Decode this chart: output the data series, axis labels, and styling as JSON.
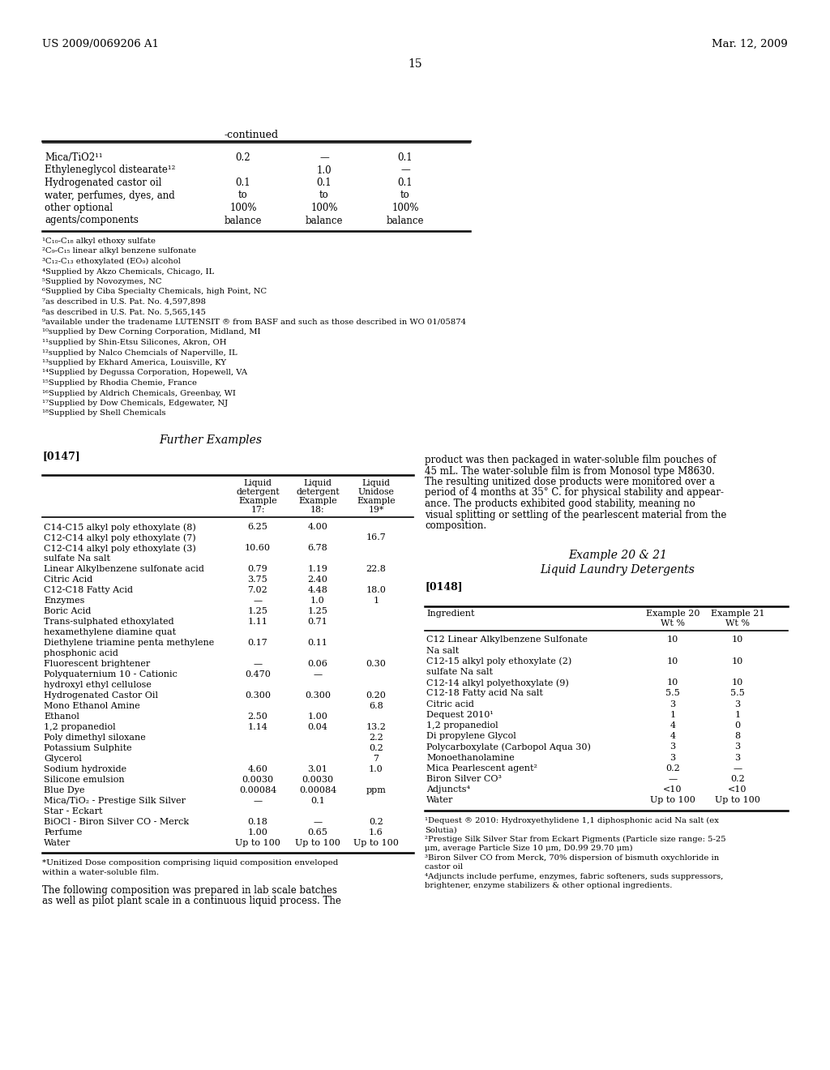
{
  "header_left": "US 2009/0069206 A1",
  "header_right": "Mar. 12, 2009",
  "page_number": "15",
  "bg_color": "#ffffff",
  "continued_label": "-continued",
  "top_table_rows": [
    [
      "Mica/TiO2¹¹",
      "0.2",
      "—",
      "0.1"
    ],
    [
      "Ethyleneglycol distearate¹²",
      "",
      "1.0",
      "—"
    ],
    [
      "Hydrogenated castor oil",
      "0.1",
      "0.1",
      "0.1"
    ],
    [
      "water, perfumes, dyes, and",
      "to",
      "to",
      "to"
    ],
    [
      "other optional",
      "100%",
      "100%",
      "100%"
    ],
    [
      "agents/components",
      "balance",
      "balance",
      "balance"
    ]
  ],
  "footnotes": [
    "¹C₁₀-C₁₈ alkyl ethoxy sulfate",
    "²C₉-C₁₅ linear alkyl benzene sulfonate",
    "³C₁₂-C₁₃ ethoxylated (EO₉) alcohol",
    "⁴Supplied by Akzo Chemicals, Chicago, IL",
    "⁵Supplied by Novozymes, NC",
    "⁶Supplied by Ciba Specialty Chemicals, high Point, NC",
    "⁷as described in U.S. Pat. No. 4,597,898",
    "⁸as described in U.S. Pat. No. 5,565,145",
    "⁹available under the tradename LUTENSIT ® from BASF and such as those described in WO 01/05874",
    "¹⁰supplied by Dew Corning Corporation, Midland, MI",
    "¹¹supplied by Shin-Etsu Silicones, Akron, OH",
    "¹²supplied by Nalco Chemcials of Naperville, IL",
    "¹³supplied by Ekhard America, Louisville, KY",
    "¹⁴Supplied by Degussa Corporation, Hopewell, VA",
    "¹⁵Supplied by Rhodia Chemie, France",
    "¹⁶Supplied by Aldrich Chemicals, Greenbay, WI",
    "¹⁷Supplied by Dow Chemicals, Edgewater, NJ",
    "¹⁸Supplied by Shell Chemicals"
  ],
  "section_title": "Further Examples",
  "paragraph_label": "[0147]",
  "left_table_col_headers": [
    "",
    "Liquid\ndetergent\nExample\n17:",
    "Liquid\ndetergent\nExample\n18:",
    "Liquid\nUnidose\nExample\n19*"
  ],
  "left_table_rows": [
    [
      "C14-C15 alkyl poly ethoxylate (8)",
      "6.25",
      "4.00",
      ""
    ],
    [
      "C12-C14 alkyl poly ethoxylate (7)",
      "",
      "",
      "16.7"
    ],
    [
      "C12-C14 alkyl poly ethoxylate (3)",
      "10.60",
      "6.78",
      ""
    ],
    [
      "sulfate Na salt",
      "",
      "",
      ""
    ],
    [
      "Linear Alkylbenzene sulfonate acid",
      "0.79",
      "1.19",
      "22.8"
    ],
    [
      "Citric Acid",
      "3.75",
      "2.40",
      ""
    ],
    [
      "C12-C18 Fatty Acid",
      "7.02",
      "4.48",
      "18.0"
    ],
    [
      "Enzymes",
      "—",
      "1.0",
      "1"
    ],
    [
      "Boric Acid",
      "1.25",
      "1.25",
      ""
    ],
    [
      "Trans-sulphated ethoxylated",
      "1.11",
      "0.71",
      ""
    ],
    [
      "hexamethylene diamine quat",
      "",
      "",
      ""
    ],
    [
      "Diethylene triamine penta methylene",
      "0.17",
      "0.11",
      ""
    ],
    [
      "phosphonic acid",
      "",
      "",
      ""
    ],
    [
      "Fluorescent brightener",
      "—",
      "0.06",
      "0.30"
    ],
    [
      "Polyquaternium 10 - Cationic",
      "0.470",
      "—",
      ""
    ],
    [
      "hydroxyl ethyl cellulose",
      "",
      "",
      ""
    ],
    [
      "Hydrogenated Castor Oil",
      "0.300",
      "0.300",
      "0.20"
    ],
    [
      "Mono Ethanol Amine",
      "",
      "",
      "6.8"
    ],
    [
      "Ethanol",
      "2.50",
      "1.00",
      ""
    ],
    [
      "1,2 propanediol",
      "1.14",
      "0.04",
      "13.2"
    ],
    [
      "Poly dimethyl siloxane",
      "",
      "",
      "2.2"
    ],
    [
      "Potassium Sulphite",
      "",
      "",
      "0.2"
    ],
    [
      "Glycerol",
      "",
      "",
      "7"
    ],
    [
      "Sodium hydroxide",
      "4.60",
      "3.01",
      "1.0"
    ],
    [
      "Silicone emulsion",
      "0.0030",
      "0.0030",
      ""
    ],
    [
      "Blue Dye",
      "0.00084",
      "0.00084",
      "ppm"
    ],
    [
      "Mica/TiO₂ - Prestige Silk Silver",
      "—",
      "0.1",
      ""
    ],
    [
      "Star - Eckart",
      "",
      "",
      ""
    ],
    [
      "BiOCl - Biron Silver CO - Merck",
      "0.18",
      "—",
      "0.2"
    ],
    [
      "Perfume",
      "1.00",
      "0.65",
      "1.6"
    ],
    [
      "Water",
      "Up to 100",
      "Up to 100",
      "Up to 100"
    ]
  ],
  "asterisk_note": "*Unitized Dose composition comprising liquid composition enveloped\nwithin a water-soluble film.",
  "bottom_text_left": "The following composition was prepared in lab scale batches\nas well as pilot plant scale in a continuous liquid process. The",
  "right_text_lines": [
    "product was then packaged in water-soluble film pouches of",
    "45 mL. The water-soluble film is from Monosol type M8630.",
    "The resulting unitized dose products were monitored over a",
    "period of 4 months at 35° C. for physical stability and appear-",
    "ance. The products exhibited good stability, meaning no",
    "visual splitting or settling of the pearlescent material from the",
    "composition."
  ],
  "example_title": "Example 20 & 21",
  "example_subtitle": "Liquid Laundry Detergents",
  "example_paragraph": "[0148]",
  "right_table_col_headers": [
    "Ingredient",
    "Example 20\nWt %",
    "Example 21\nWt %"
  ],
  "right_table_rows": [
    [
      "C12 Linear Alkylbenzene Sulfonate",
      "10",
      "10"
    ],
    [
      "Na salt",
      "",
      ""
    ],
    [
      "C12-15 alkyl poly ethoxylate (2)",
      "10",
      "10"
    ],
    [
      "sulfate Na salt",
      "",
      ""
    ],
    [
      "C12-14 alkyl polyethoxylate (9)",
      "10",
      "10"
    ],
    [
      "C12-18 Fatty acid Na salt",
      "5.5",
      "5.5"
    ],
    [
      "Citric acid",
      "3",
      "3"
    ],
    [
      "Dequest 2010¹",
      "1",
      "1"
    ],
    [
      "1,2 propanediol",
      "4",
      "0"
    ],
    [
      "Di propylene Glycol",
      "4",
      "8"
    ],
    [
      "Polycarboxylate (Carbopol Aqua 30)",
      "3",
      "3"
    ],
    [
      "Monoethanolamine",
      "3",
      "3"
    ],
    [
      "Mica Pearlescent agent²",
      "0.2",
      "—"
    ],
    [
      "Biron Silver CO³",
      "—",
      "0.2"
    ],
    [
      "Adjuncts⁴",
      "<10",
      "<10"
    ],
    [
      "Water",
      "Up to 100",
      "Up to 100"
    ]
  ],
  "right_footnotes": [
    "¹Dequest ® 2010: Hydroxyethylidene 1,1 diphosphonic acid Na salt (ex",
    "Solutia)",
    "²Prestige Silk Silver Star from Eckart Pigments (Particle size range: 5-25",
    "μm, average Particle Size 10 μm, D0.99 29.70 μm)",
    "³Biron Silver CO from Merck, 70% dispersion of bismuth oxychloride in",
    "castor oil",
    "⁴Adjuncts include perfume, enzymes, fabric softeners, suds suppressors,",
    "brightener, enzyme stabilizers & other optional ingredients."
  ]
}
